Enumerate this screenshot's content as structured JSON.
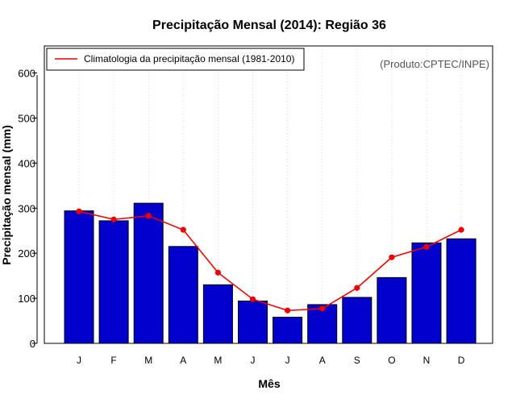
{
  "chart_data": {
    "type": "bar",
    "title": "Precipitação Mensal (2014): Região 36",
    "xlabel": "Mês",
    "ylabel": "Precipitação mensal (mm)",
    "categories": [
      "J",
      "F",
      "M",
      "A",
      "M",
      "J",
      "J",
      "A",
      "S",
      "O",
      "N",
      "D"
    ],
    "yticks": [
      0,
      100,
      200,
      300,
      400,
      500,
      600
    ],
    "ylim": [
      0,
      660
    ],
    "grid": "vertical-dotted",
    "series": [
      {
        "name": "Precipitação mensal 2014",
        "type": "bar",
        "color": "#0000cc",
        "values": [
          294,
          272,
          311,
          215,
          130,
          94,
          58,
          86,
          102,
          146,
          223,
          232
        ]
      },
      {
        "name": "Climatologia da precipitação mensal (1981-2010)",
        "type": "line",
        "color": "#ee0000",
        "values": [
          293,
          275,
          283,
          252,
          157,
          98,
          73,
          77,
          123,
          191,
          214,
          252
        ]
      }
    ],
    "legend": {
      "position": "top-left",
      "entries": [
        "Climatologia da precipitação mensal (1981-2010)"
      ]
    },
    "annotation": "(Produto:CPTEC/INPE)"
  }
}
